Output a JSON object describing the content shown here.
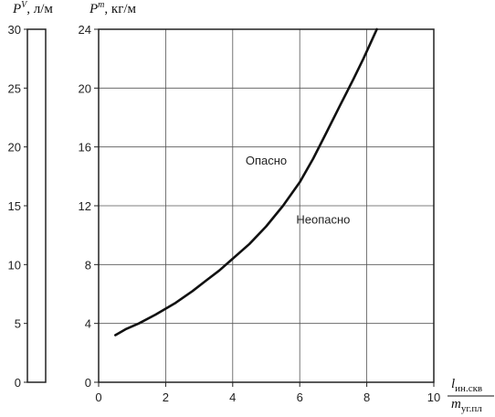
{
  "chart_data": {
    "type": "line",
    "grid": true,
    "x_axis": {
      "label_numerator": "l",
      "label_numerator_sub": "ин.скв",
      "label_denominator": "m",
      "label_denominator_sub": "уг.пл",
      "range": [
        0,
        10
      ],
      "ticks": [
        "0",
        "2",
        "4",
        "6",
        "8",
        "10"
      ]
    },
    "y_axis_left": {
      "label_base": "P",
      "label_sup": "V",
      "label_unit": ", л/м",
      "range": [
        0,
        30
      ],
      "ticks": [
        "0",
        "5",
        "10",
        "15",
        "20",
        "25",
        "30"
      ]
    },
    "y_axis_right": {
      "label_base": "P",
      "label_sup": "m",
      "label_unit": ", кг/м",
      "range": [
        0,
        24
      ],
      "ticks": [
        "0",
        "4",
        "8",
        "12",
        "16",
        "20",
        "24"
      ]
    },
    "series": [
      {
        "x": [
          0.5,
          0.8,
          1.2,
          1.7,
          2.3,
          2.8,
          3.2,
          3.6,
          4.0,
          4.5,
          5.0,
          5.5,
          6.0,
          6.4,
          6.8,
          7.2,
          7.6,
          7.9,
          8.1,
          8.3
        ],
        "y": [
          3.2,
          3.6,
          4.0,
          4.6,
          5.4,
          6.2,
          6.9,
          7.6,
          8.4,
          9.4,
          10.6,
          12.0,
          13.6,
          15.2,
          17.0,
          18.8,
          20.6,
          22.0,
          23.0,
          24.0
        ]
      }
    ],
    "annotations": [
      {
        "text": "Опасно",
        "x": 5.0,
        "y": 14.8
      },
      {
        "text": "Неопасно",
        "x": 6.7,
        "y": 10.8
      }
    ]
  }
}
